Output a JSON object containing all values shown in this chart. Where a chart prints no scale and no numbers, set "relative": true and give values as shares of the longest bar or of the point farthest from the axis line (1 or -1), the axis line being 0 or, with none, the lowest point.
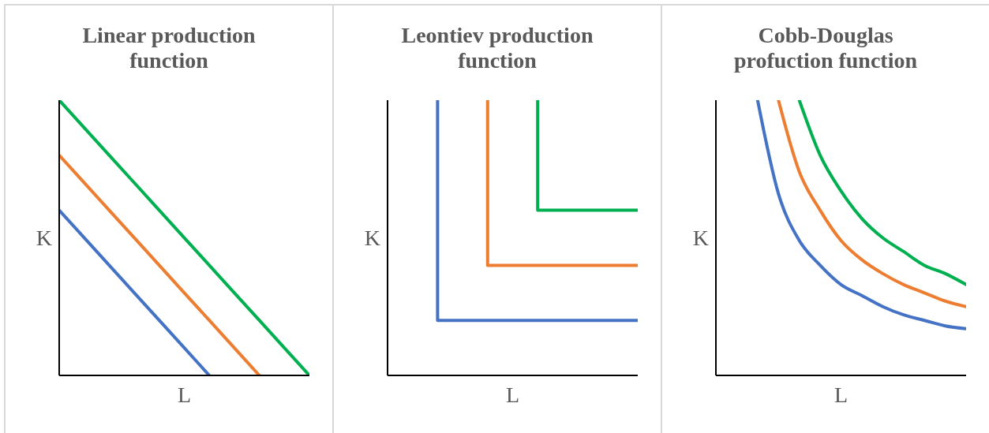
{
  "chart_data": [
    {
      "type": "line",
      "title": "Linear production function",
      "xlabel": "L",
      "ylabel": "K",
      "relative": true,
      "marker": "none",
      "categories": [
        null,
        null,
        null,
        null,
        null,
        null
      ],
      "series": [
        {
          "color": "#4472c4",
          "values": [
            0.6,
            0.4,
            0.2,
            0,
            null,
            null
          ]
        },
        {
          "color": "#ed7d31",
          "values": [
            0.8,
            0.6,
            0.4,
            0.2,
            0,
            null
          ]
        },
        {
          "color": "#00b050",
          "values": [
            1,
            0.8,
            0.6,
            0.4,
            0.2,
            0
          ]
        }
      ]
    },
    {
      "type": "step",
      "title": "Leontiev production function",
      "xlabel": "L",
      "ylabel": "K",
      "relative": true,
      "marker": "none",
      "categories": [
        null,
        null,
        null,
        null,
        null,
        null
      ],
      "series": [
        {
          "color": "#4472c4",
          "values": [
            null,
            1,
            0.2,
            0.2,
            0.2,
            0.2
          ]
        },
        {
          "color": "#ed7d31",
          "values": [
            null,
            null,
            1,
            0.4,
            0.4,
            0.4
          ]
        },
        {
          "color": "#00b050",
          "values": [
            null,
            null,
            null,
            1,
            0.6,
            0.6
          ]
        }
      ]
    },
    {
      "type": "line",
      "title": "Cobb-Douglas profuction function",
      "xlabel": "L",
      "ylabel": "K",
      "relative": true,
      "marker": "none",
      "categories": [
        null,
        null,
        null,
        null,
        null,
        null,
        null,
        null,
        null,
        null,
        null,
        null,
        null
      ],
      "series": [
        {
          "color": "#4472c4",
          "values": [
            null,
            null,
            1,
            0.66,
            0.49,
            0.4,
            0.33,
            0.29,
            0.25,
            0.22,
            0.2,
            0.18,
            0.17
          ]
        },
        {
          "color": "#ed7d31",
          "values": [
            null,
            null,
            null,
            1,
            0.74,
            0.6,
            0.49,
            0.42,
            0.37,
            0.33,
            0.3,
            0.27,
            0.25
          ]
        },
        {
          "color": "#00b050",
          "values": [
            null,
            null,
            null,
            null,
            1,
            0.8,
            0.67,
            0.57,
            0.5,
            0.45,
            0.4,
            0.37,
            0.33
          ]
        }
      ]
    }
  ]
}
